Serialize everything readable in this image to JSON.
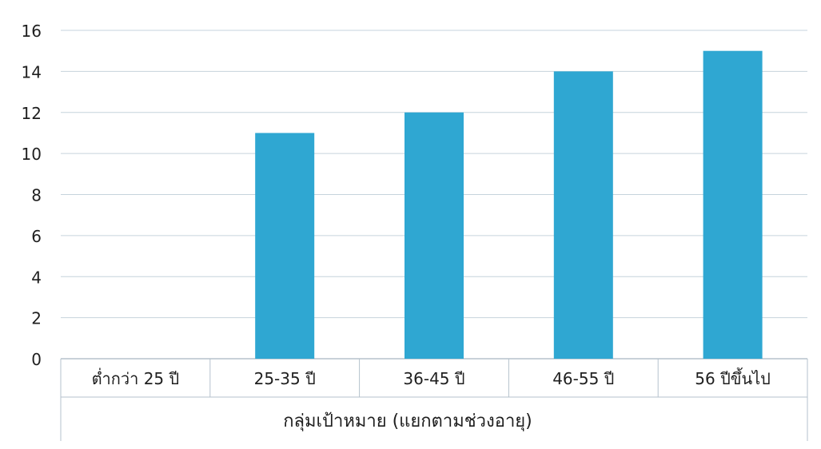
{
  "chart_data": {
    "type": "bar",
    "categories": [
      "ต่ำกว่า 25 ปี",
      "25-35 ปี",
      "36-45 ปี",
      "46-55 ปี",
      "56 ปีขึ้นไป"
    ],
    "values": [
      0,
      11,
      12,
      14,
      15
    ],
    "xlabel": "กลุ่มเป้าหมาย  (แยกตามช่วงอายุ)",
    "ylabel": "",
    "ylim": [
      0,
      16
    ],
    "yticks": [
      "0",
      "2",
      "4",
      "6",
      "8",
      "10",
      "12",
      "14",
      "16"
    ],
    "grid": true,
    "legend": "none",
    "colors": {
      "bar": "#2fa7d2",
      "grid": "#c6d3dc",
      "axis": "#b5c2cc",
      "text": "#1f1f1f"
    }
  }
}
